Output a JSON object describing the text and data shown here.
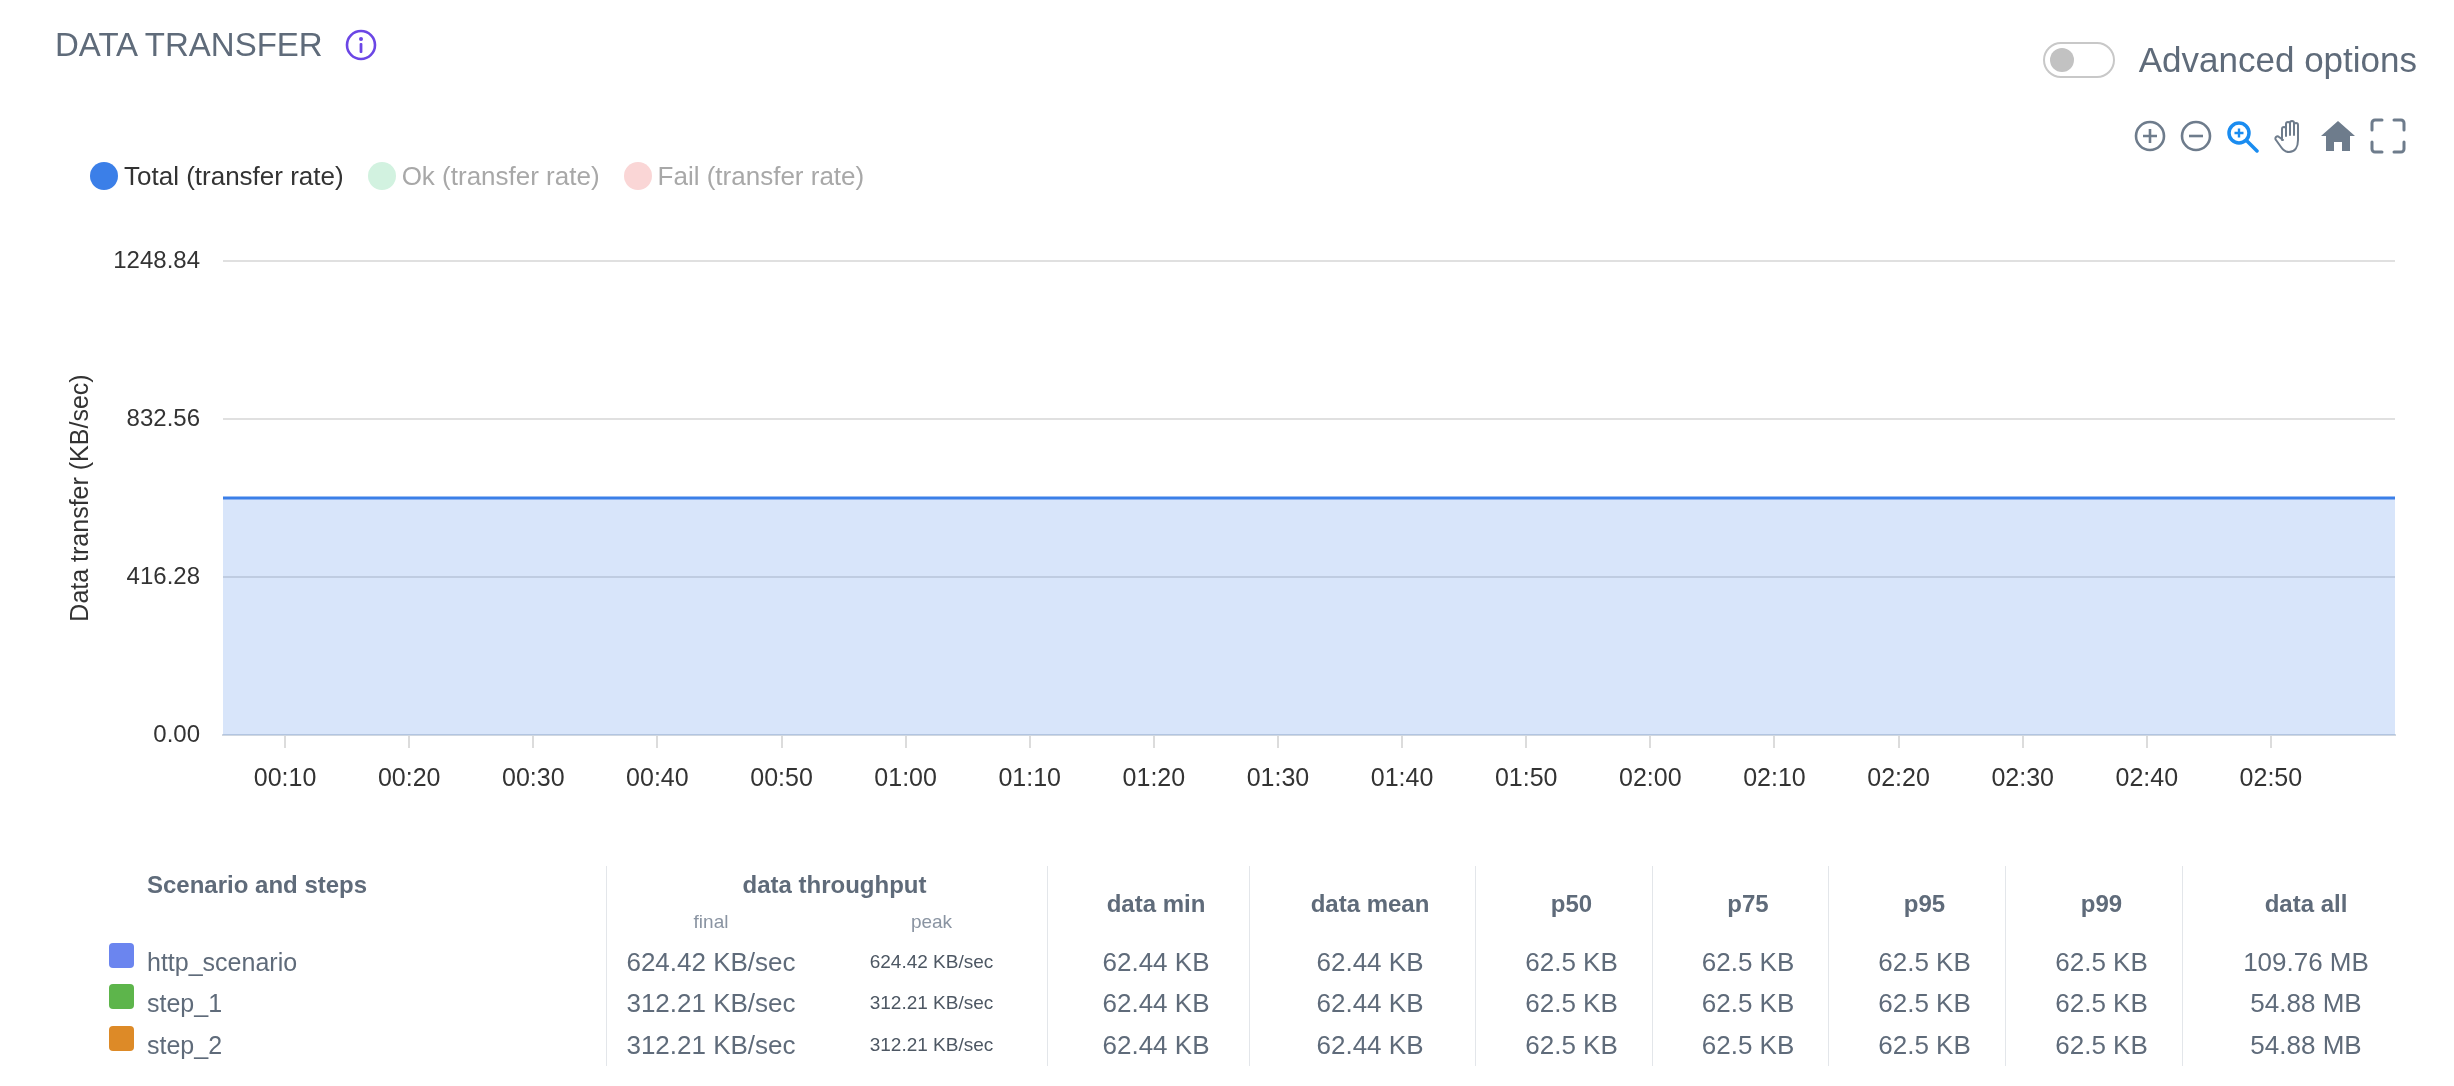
{
  "chart_data": [
    {
      "type": "area",
      "title": "DATA TRANSFER",
      "ylabel": "Data transfer (KB/sec)",
      "annotations": [
        "Advanced options"
      ],
      "x": [
        5,
        180
      ],
      "xlim": [
        5,
        180
      ],
      "xticks": [
        {
          "value": 10,
          "label": "00:10"
        },
        {
          "value": 20,
          "label": "00:20"
        },
        {
          "value": 30,
          "label": "00:30"
        },
        {
          "value": 40,
          "label": "00:40"
        },
        {
          "value": 50,
          "label": "00:50"
        },
        {
          "value": 60,
          "label": "01:00"
        },
        {
          "value": 70,
          "label": "01:10"
        },
        {
          "value": 80,
          "label": "01:20"
        },
        {
          "value": 90,
          "label": "01:30"
        },
        {
          "value": 100,
          "label": "01:40"
        },
        {
          "value": 110,
          "label": "01:50"
        },
        {
          "value": 120,
          "label": "02:00"
        },
        {
          "value": 130,
          "label": "02:10"
        },
        {
          "value": 140,
          "label": "02:20"
        },
        {
          "value": 150,
          "label": "02:30"
        },
        {
          "value": 160,
          "label": "02:40"
        },
        {
          "value": 170,
          "label": "02:50"
        }
      ],
      "ylim": [
        0,
        1248.84
      ],
      "yticks": [
        {
          "value": 0,
          "label": "0.00"
        },
        416.28,
        832.56,
        1248.84
      ],
      "grid": "y",
      "legend": "top left",
      "series": [
        {
          "name": "Total (transfer rate)",
          "color": "#3b7fe8",
          "values": [
            624.42,
            624.42
          ]
        },
        {
          "name": "Ok (transfer rate)",
          "color": "#d2f2e0",
          "values": [
            null,
            null
          ]
        },
        {
          "name": "Fail (transfer rate)",
          "color": "#fad6d6",
          "values": [
            null,
            null
          ]
        }
      ]
    },
    {
      "type": "other",
      "legend_title": "Scenario and steps",
      "annotations": [
        "data throughput"
      ],
      "categories": [
        "final",
        "peak",
        "data min",
        "data mean",
        "p50",
        "p75",
        "p95",
        "p99",
        "data all"
      ],
      "series": [
        {
          "name": "http_scenario",
          "color": "#6b85ef",
          "values": [
            624.42,
            624.42,
            62.44,
            62.44,
            62.5,
            62.5,
            62.5,
            62.5,
            109.76
          ],
          "value_labels": [
            "624.42 KB/sec",
            "624.42 KB/sec",
            "62.44 KB",
            "62.44 KB",
            "62.5 KB",
            "62.5 KB",
            "62.5 KB",
            "62.5 KB",
            "109.76 MB"
          ]
        },
        {
          "name": "step_1",
          "color": "#5db54b",
          "values": [
            312.21,
            312.21,
            62.44,
            62.44,
            62.5,
            62.5,
            62.5,
            62.5,
            54.88
          ],
          "value_labels": [
            "312.21 KB/sec",
            "312.21 KB/sec",
            "62.44 KB",
            "62.44 KB",
            "62.5 KB",
            "62.5 KB",
            "62.5 KB",
            "62.5 KB",
            "54.88 MB"
          ]
        },
        {
          "name": "step_2",
          "color": "#dd8a27",
          "values": [
            312.21,
            312.21,
            62.44,
            62.44,
            62.5,
            62.5,
            62.5,
            62.5,
            54.88
          ],
          "value_labels": [
            "312.21 KB/sec",
            "312.21 KB/sec",
            "62.44 KB",
            "62.44 KB",
            "62.5 KB",
            "62.5 KB",
            "62.5 KB",
            "62.5 KB",
            "54.88 MB"
          ]
        }
      ]
    }
  ]
}
